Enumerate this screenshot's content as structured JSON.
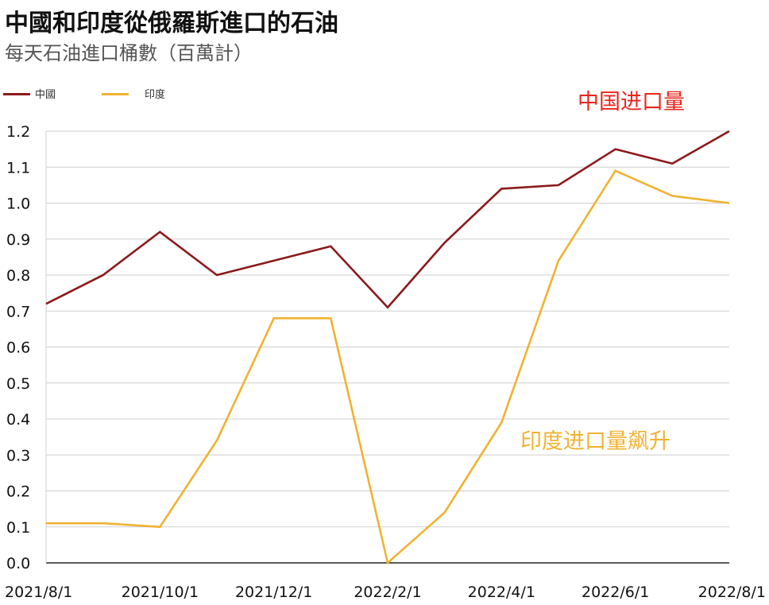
{
  "title": "中國和印度從俄羅斯進口的石油",
  "subtitle": "每天石油進口桶數（百萬計）",
  "colors": {
    "china": "#8b1a1a",
    "india": "#f0b232",
    "annot_china": "#e8261c",
    "annot_india": "#f0b232",
    "grid": "#cfcfcf",
    "axis": "#222222"
  },
  "annotations": {
    "china": "中国进口量",
    "india": "印度进口量飙升"
  },
  "chart_data": {
    "type": "line",
    "title": "中國和印度從俄羅斯進口的石油",
    "subtitle": "每天石油進口桶數（百萬計）",
    "x": [
      "2021/8/1",
      "2021/9/1",
      "2021/10/1",
      "2021/11/1",
      "2021/12/1",
      "2022/1/1",
      "2022/2/1",
      "2022/3/1",
      "2022/4/1",
      "2022/5/1",
      "2022/6/1",
      "2022/7/1",
      "2022/8/1"
    ],
    "x_tick_labels": [
      "2021/8/1",
      "2021/10/1",
      "2021/12/1",
      "2022/2/1",
      "2022/4/1",
      "2022/6/1",
      "2022/8/1"
    ],
    "y_tick_labels": [
      "0.0",
      "0.1",
      "0.2",
      "0.3",
      "0.4",
      "0.5",
      "0.6",
      "0.7",
      "0.8",
      "0.9",
      "1.0",
      "1.1",
      "1.2"
    ],
    "ylim": [
      0,
      1.2
    ],
    "grid": true,
    "legend_position": "top-left",
    "series": [
      {
        "name": "中國",
        "color": "#8b1a1a",
        "values": [
          0.72,
          0.8,
          0.92,
          0.8,
          0.84,
          0.88,
          0.71,
          0.89,
          1.04,
          1.05,
          1.15,
          1.11,
          1.2
        ]
      },
      {
        "name": "印度",
        "color": "#f0b232",
        "values": [
          0.11,
          0.11,
          0.1,
          0.34,
          0.68,
          0.68,
          0.0,
          0.14,
          0.39,
          0.84,
          1.09,
          1.02,
          1.0
        ]
      }
    ]
  }
}
